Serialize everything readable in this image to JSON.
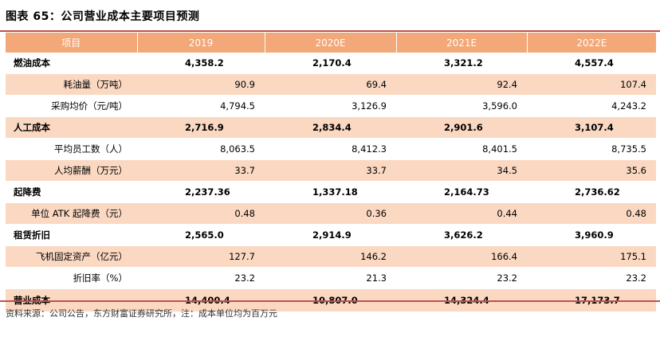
{
  "title": "图表 65：公司营业成本主要项目预测",
  "header": [
    "项目",
    "2019",
    "2020E",
    "2021E",
    "2022E"
  ],
  "rows": [
    {
      "label": "燃油成本",
      "values": [
        "4,358.2",
        "2,170.4",
        "3,321.2",
        "4,557.4"
      ]
    },
    {
      "label": "耗油量（万吨）",
      "values": [
        "90.9",
        "69.4",
        "92.4",
        "107.4"
      ]
    },
    {
      "label": "采购均价（元/吨）",
      "values": [
        "4,794.5",
        "3,126.9",
        "3,596.0",
        "4,243.2"
      ]
    },
    {
      "label": "人工成本",
      "values": [
        "2,716.9",
        "2,834.4",
        "2,901.6",
        "3,107.4"
      ]
    },
    {
      "label": "平均员工数（人）",
      "values": [
        "8,063.5",
        "8,412.3",
        "8,401.5",
        "8,735.5"
      ]
    },
    {
      "label": "人均薪酬（万元）",
      "values": [
        "33.7",
        "33.7",
        "34.5",
        "35.6"
      ]
    },
    {
      "label": "起降费",
      "values": [
        "2,237.36",
        "1,337.18",
        "2,164.73",
        "2,736.62"
      ]
    },
    {
      "label": "单位 ATK 起降费（元）",
      "values": [
        "0.48",
        "0.36",
        "0.44",
        "0.48"
      ]
    },
    {
      "label": "租赁折旧",
      "values": [
        "2,565.0",
        "2,914.9",
        "3,626.2",
        "3,960.9"
      ]
    },
    {
      "label": "飞机固定资产（亿元）",
      "values": [
        "127.7",
        "146.2",
        "166.4",
        "175.1"
      ]
    },
    {
      "label": "折旧率（%）",
      "values": [
        "23.2",
        "21.3",
        "23.2",
        "23.2"
      ]
    },
    {
      "label": "营业成本",
      "values": [
        "14,400.4",
        "10,807.0",
        "14,324.4",
        "17,173.7"
      ]
    }
  ],
  "note": "资料来源：公司公告，东方财富证券研究所，注：成本单位均为百万元"
}
